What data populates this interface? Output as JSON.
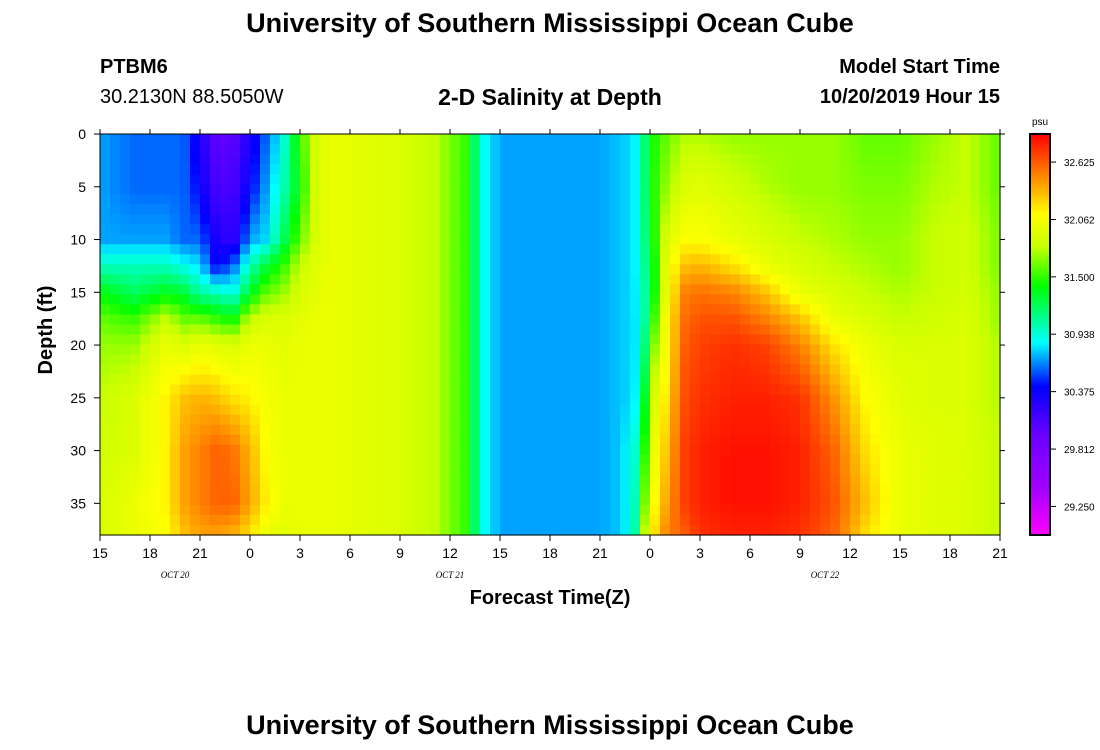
{
  "header": {
    "title": "University of Southern Mississippi Ocean Cube",
    "station": "PTBM6",
    "location": "30.2130N 88.5050W",
    "plot_title": "2-D Salinity at Depth",
    "model_label": "Model Start Time",
    "model_time": "10/20/2019 Hour 15"
  },
  "footer": {
    "title": "University of Southern Mississippi Ocean Cube"
  },
  "chart_data": {
    "type": "heatmap",
    "title": "2-D Salinity at Depth",
    "xlabel": "Forecast Time(Z)",
    "ylabel": "Depth (ft)",
    "x_tick_labels": [
      "15",
      "18",
      "21",
      "0",
      "3",
      "6",
      "9",
      "12",
      "15",
      "18",
      "21",
      "0",
      "3",
      "6",
      "9",
      "12",
      "15",
      "18",
      "21"
    ],
    "x_range_hours": [
      0,
      54
    ],
    "date_labels": [
      {
        "label": "OCT 20",
        "hour": 4.5
      },
      {
        "label": "OCT 21",
        "hour": 21
      },
      {
        "label": "OCT 22",
        "hour": 43.5
      }
    ],
    "y_ticks": [
      0,
      5,
      10,
      15,
      20,
      25,
      30,
      35
    ],
    "ylim": [
      38,
      0
    ],
    "colorbar": {
      "unit": "psu",
      "min": 28.97,
      "max": 32.9,
      "ticks": [
        "32.625",
        "32.062",
        "31.500",
        "30.938",
        "30.375",
        "29.812",
        "29.250"
      ],
      "colors": [
        "#ff00ff",
        "#a000ff",
        "#6a00ff",
        "#0000ff",
        "#00ffff",
        "#00ff00",
        "#c8ff00",
        "#ffff00",
        "#ff8000",
        "#ff0000"
      ]
    },
    "x_hours": [
      0,
      2,
      4,
      5,
      6,
      7,
      8,
      9,
      10,
      11,
      12,
      13,
      14,
      16,
      18,
      20,
      22,
      22.5,
      23,
      24,
      25,
      26,
      27,
      28,
      29,
      30,
      31,
      32,
      32.5,
      33,
      34,
      35,
      36,
      38,
      40,
      42,
      44,
      46,
      48,
      50,
      52,
      54
    ],
    "depths_ft": [
      0,
      5,
      10,
      12.5,
      15,
      17.5,
      20,
      25,
      30,
      35,
      38
    ],
    "salinity_psu": [
      [
        30.7,
        30.7,
        30.7,
        31.0,
        31.4,
        31.6,
        31.7,
        31.8,
        31.85,
        31.9,
        31.9
      ],
      [
        30.6,
        30.6,
        30.7,
        31.0,
        31.2,
        31.5,
        31.7,
        31.9,
        31.9,
        32.0,
        32.0
      ],
      [
        30.6,
        30.6,
        30.7,
        31.0,
        31.35,
        31.8,
        32.0,
        32.15,
        32.15,
        32.15,
        32.1
      ],
      [
        30.6,
        30.6,
        30.6,
        30.9,
        31.3,
        31.6,
        31.9,
        32.3,
        32.4,
        32.4,
        32.3
      ],
      [
        30.3,
        30.4,
        30.6,
        30.8,
        31.05,
        31.6,
        32.0,
        32.35,
        32.5,
        32.5,
        32.4
      ],
      [
        30.0,
        30.1,
        30.3,
        30.4,
        31.0,
        31.5,
        31.95,
        32.3,
        32.6,
        32.6,
        32.4
      ],
      [
        30.0,
        30.1,
        30.2,
        30.6,
        30.9,
        31.4,
        31.9,
        32.2,
        32.55,
        32.6,
        32.35
      ],
      [
        30.3,
        30.4,
        30.7,
        31.0,
        31.3,
        31.8,
        32.0,
        32.15,
        32.35,
        32.4,
        32.2
      ],
      [
        30.6,
        30.7,
        30.8,
        31.3,
        31.6,
        31.9,
        32.0,
        32.05,
        32.1,
        32.15,
        32.0
      ],
      [
        30.9,
        31.0,
        31.2,
        31.5,
        31.7,
        31.9,
        31.95,
        32.0,
        32.0,
        32.0,
        31.95
      ],
      [
        31.5,
        31.4,
        31.6,
        31.8,
        31.9,
        31.95,
        32.0,
        32.0,
        32.0,
        32.0,
        32.0
      ],
      [
        31.9,
        31.9,
        31.9,
        31.95,
        31.95,
        32.0,
        32.0,
        32.0,
        32.0,
        32.0,
        32.0
      ],
      [
        32.0,
        32.0,
        32.0,
        32.0,
        32.0,
        32.0,
        32.0,
        32.0,
        32.0,
        32.0,
        32.0
      ],
      [
        31.95,
        31.95,
        31.95,
        31.95,
        31.95,
        31.95,
        31.95,
        31.95,
        31.95,
        31.95,
        31.95
      ],
      [
        31.9,
        31.9,
        31.9,
        31.9,
        31.9,
        31.9,
        31.9,
        31.9,
        31.9,
        31.9,
        31.9
      ],
      [
        31.8,
        31.8,
        31.8,
        31.8,
        31.8,
        31.8,
        31.8,
        31.8,
        31.8,
        31.8,
        31.8
      ],
      [
        31.5,
        31.5,
        31.5,
        31.5,
        31.5,
        31.5,
        31.5,
        31.5,
        31.5,
        31.5,
        31.5
      ],
      [
        31.2,
        31.2,
        31.2,
        31.2,
        31.2,
        31.2,
        31.2,
        31.2,
        31.2,
        31.2,
        31.2
      ],
      [
        30.9,
        30.9,
        30.9,
        30.9,
        30.9,
        30.9,
        30.9,
        30.9,
        30.9,
        30.9,
        30.9
      ],
      [
        30.7,
        30.7,
        30.7,
        30.7,
        30.7,
        30.7,
        30.7,
        30.7,
        30.7,
        30.7,
        30.7
      ],
      [
        30.7,
        30.7,
        30.7,
        30.7,
        30.7,
        30.7,
        30.7,
        30.7,
        30.7,
        30.7,
        30.7
      ],
      [
        30.7,
        30.7,
        30.7,
        30.7,
        30.7,
        30.7,
        30.7,
        30.7,
        30.7,
        30.7,
        30.7
      ],
      [
        30.7,
        30.7,
        30.7,
        30.7,
        30.7,
        30.7,
        30.7,
        30.7,
        30.7,
        30.7,
        30.7
      ],
      [
        30.7,
        30.7,
        30.7,
        30.7,
        30.7,
        30.7,
        30.7,
        30.7,
        30.7,
        30.7,
        30.7
      ],
      [
        30.7,
        30.7,
        30.7,
        30.7,
        30.7,
        30.7,
        30.7,
        30.7,
        30.7,
        30.7,
        30.7
      ],
      [
        30.7,
        30.7,
        30.7,
        30.7,
        30.7,
        30.7,
        30.7,
        30.7,
        30.7,
        30.7,
        30.7
      ],
      [
        30.75,
        30.75,
        30.75,
        30.75,
        30.75,
        30.75,
        30.75,
        30.75,
        30.75,
        30.75,
        30.75
      ],
      [
        30.8,
        30.8,
        30.8,
        30.8,
        30.8,
        30.8,
        30.8,
        30.8,
        30.9,
        30.9,
        30.9
      ],
      [
        31.0,
        31.0,
        31.0,
        31.0,
        30.95,
        30.9,
        30.9,
        31.0,
        31.2,
        31.4,
        31.6
      ],
      [
        31.4,
        31.4,
        31.3,
        31.2,
        31.2,
        31.3,
        31.5,
        31.8,
        31.9,
        32.0,
        32.1
      ],
      [
        31.6,
        31.7,
        31.9,
        32.0,
        32.0,
        32.1,
        32.1,
        32.2,
        32.3,
        32.4,
        32.5
      ],
      [
        31.75,
        31.9,
        32.1,
        32.3,
        32.5,
        32.55,
        32.6,
        32.65,
        32.7,
        32.7,
        32.6
      ],
      [
        31.75,
        31.95,
        32.1,
        32.35,
        32.55,
        32.65,
        32.7,
        32.75,
        32.8,
        32.8,
        32.75
      ],
      [
        31.7,
        31.85,
        32.0,
        32.2,
        32.5,
        32.65,
        32.75,
        32.8,
        32.85,
        32.85,
        32.8
      ],
      [
        31.7,
        31.75,
        31.9,
        32.0,
        32.3,
        32.5,
        32.7,
        32.8,
        32.85,
        32.85,
        32.8
      ],
      [
        31.7,
        31.7,
        31.8,
        31.9,
        32.0,
        32.3,
        32.5,
        32.75,
        32.8,
        32.8,
        32.75
      ],
      [
        31.7,
        31.7,
        31.75,
        31.8,
        31.9,
        32.0,
        32.2,
        32.45,
        32.6,
        32.65,
        32.6
      ],
      [
        31.6,
        31.65,
        31.7,
        31.75,
        31.8,
        31.9,
        32.0,
        32.1,
        32.2,
        32.3,
        32.2
      ],
      [
        31.6,
        31.65,
        31.7,
        31.7,
        31.75,
        31.8,
        31.9,
        31.95,
        32.0,
        32.0,
        32.0
      ],
      [
        31.7,
        31.75,
        31.8,
        31.8,
        31.8,
        31.85,
        31.9,
        31.9,
        31.95,
        31.95,
        31.95
      ],
      [
        31.8,
        31.8,
        31.85,
        31.85,
        31.85,
        31.9,
        31.9,
        31.9,
        31.9,
        31.9,
        31.9
      ],
      [
        31.6,
        31.6,
        31.65,
        31.65,
        31.7,
        31.7,
        31.75,
        31.75,
        31.8,
        31.8,
        31.8
      ]
    ]
  }
}
